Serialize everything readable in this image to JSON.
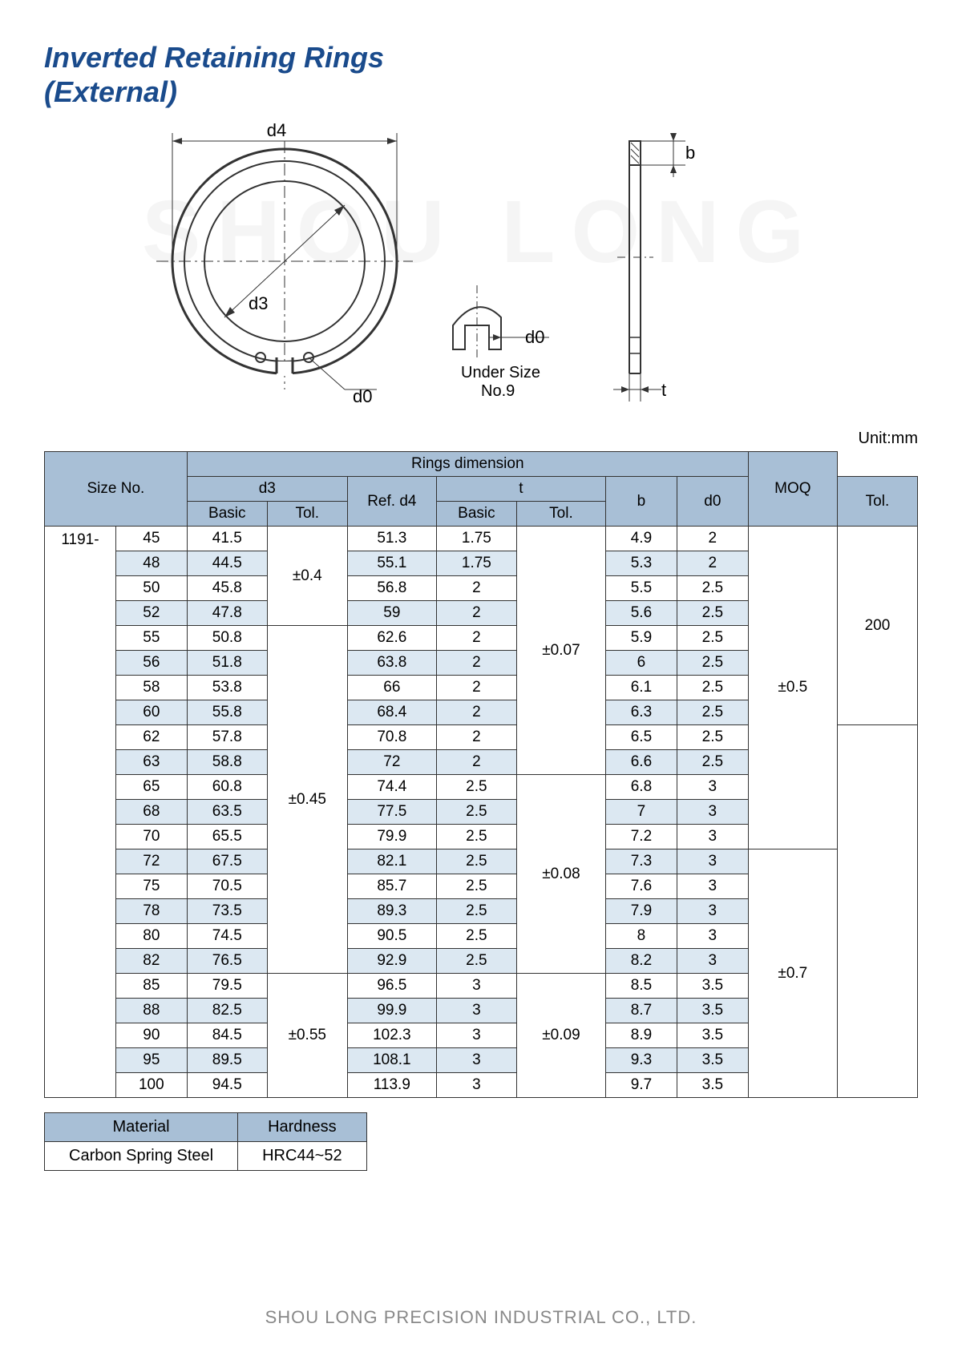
{
  "title_line1": "Inverted Retaining Rings",
  "title_line2": "(External)",
  "watermark": "SHOU LONG",
  "unit_label": "Unit:mm",
  "diagram": {
    "d4_label": "d4",
    "d3_label": "d3",
    "d0_label": "d0",
    "b_label": "b",
    "t_label": "t",
    "under_size_label": "Under Size",
    "under_size_no": "No.9"
  },
  "headers": {
    "size_no": "Size No.",
    "rings_dim": "Rings dimension",
    "moq": "MOQ",
    "d3": "d3",
    "ref_d4": "Ref. d4",
    "t": "t",
    "b": "b",
    "d0": "d0",
    "tol": "Tol.",
    "basic": "Basic"
  },
  "series": "1191-",
  "rows": [
    {
      "size": "45",
      "d3": "41.5",
      "d4": "51.3",
      "t": "1.75",
      "b": "4.9",
      "d0": "2",
      "shade": false
    },
    {
      "size": "48",
      "d3": "44.5",
      "d4": "55.1",
      "t": "1.75",
      "b": "5.3",
      "d0": "2",
      "shade": true
    },
    {
      "size": "50",
      "d3": "45.8",
      "d4": "56.8",
      "t": "2",
      "b": "5.5",
      "d0": "2.5",
      "shade": false
    },
    {
      "size": "52",
      "d3": "47.8",
      "d4": "59",
      "t": "2",
      "b": "5.6",
      "d0": "2.5",
      "shade": true
    },
    {
      "size": "55",
      "d3": "50.8",
      "d4": "62.6",
      "t": "2",
      "b": "5.9",
      "d0": "2.5",
      "shade": false
    },
    {
      "size": "56",
      "d3": "51.8",
      "d4": "63.8",
      "t": "2",
      "b": "6",
      "d0": "2.5",
      "shade": true
    },
    {
      "size": "58",
      "d3": "53.8",
      "d4": "66",
      "t": "2",
      "b": "6.1",
      "d0": "2.5",
      "shade": false
    },
    {
      "size": "60",
      "d3": "55.8",
      "d4": "68.4",
      "t": "2",
      "b": "6.3",
      "d0": "2.5",
      "shade": true
    },
    {
      "size": "62",
      "d3": "57.8",
      "d4": "70.8",
      "t": "2",
      "b": "6.5",
      "d0": "2.5",
      "shade": false
    },
    {
      "size": "63",
      "d3": "58.8",
      "d4": "72",
      "t": "2",
      "b": "6.6",
      "d0": "2.5",
      "shade": true
    },
    {
      "size": "65",
      "d3": "60.8",
      "d4": "74.4",
      "t": "2.5",
      "b": "6.8",
      "d0": "3",
      "shade": false
    },
    {
      "size": "68",
      "d3": "63.5",
      "d4": "77.5",
      "t": "2.5",
      "b": "7",
      "d0": "3",
      "shade": true
    },
    {
      "size": "70",
      "d3": "65.5",
      "d4": "79.9",
      "t": "2.5",
      "b": "7.2",
      "d0": "3",
      "shade": false
    },
    {
      "size": "72",
      "d3": "67.5",
      "d4": "82.1",
      "t": "2.5",
      "b": "7.3",
      "d0": "3",
      "shade": true
    },
    {
      "size": "75",
      "d3": "70.5",
      "d4": "85.7",
      "t": "2.5",
      "b": "7.6",
      "d0": "3",
      "shade": false
    },
    {
      "size": "78",
      "d3": "73.5",
      "d4": "89.3",
      "t": "2.5",
      "b": "7.9",
      "d0": "3",
      "shade": true
    },
    {
      "size": "80",
      "d3": "74.5",
      "d4": "90.5",
      "t": "2.5",
      "b": "8",
      "d0": "3",
      "shade": false
    },
    {
      "size": "82",
      "d3": "76.5",
      "d4": "92.9",
      "t": "2.5",
      "b": "8.2",
      "d0": "3",
      "shade": true
    },
    {
      "size": "85",
      "d3": "79.5",
      "d4": "96.5",
      "t": "3",
      "b": "8.5",
      "d0": "3.5",
      "shade": false
    },
    {
      "size": "88",
      "d3": "82.5",
      "d4": "99.9",
      "t": "3",
      "b": "8.7",
      "d0": "3.5",
      "shade": true
    },
    {
      "size": "90",
      "d3": "84.5",
      "d4": "102.3",
      "t": "3",
      "b": "8.9",
      "d0": "3.5",
      "shade": false
    },
    {
      "size": "95",
      "d3": "89.5",
      "d4": "108.1",
      "t": "3",
      "b": "9.3",
      "d0": "3.5",
      "shade": true
    },
    {
      "size": "100",
      "d3": "94.5",
      "d4": "113.9",
      "t": "3",
      "b": "9.7",
      "d0": "3.5",
      "shade": false
    }
  ],
  "d3_tol_groups": [
    {
      "span": 4,
      "val": "±0.4"
    },
    {
      "span": 14,
      "val": "±0.45"
    },
    {
      "span": 5,
      "val": "±0.55"
    }
  ],
  "t_tol_groups": [
    {
      "span": 10,
      "val": "±0.07"
    },
    {
      "span": 8,
      "val": "±0.08"
    },
    {
      "span": 5,
      "val": "±0.09"
    }
  ],
  "d0_tol_groups": [
    {
      "span": 13,
      "val": "±0.5"
    },
    {
      "span": 10,
      "val": "±0.7"
    }
  ],
  "moq_groups": [
    {
      "span": 8,
      "val": "200"
    },
    {
      "span": 15,
      "val": ""
    }
  ],
  "material": {
    "h1": "Material",
    "h2": "Hardness",
    "v1": "Carbon Spring Steel",
    "v2": "HRC44~52"
  },
  "footer": "SHOU LONG PRECISION INDUSTRIAL CO., LTD.",
  "colors": {
    "title": "#1a4b8c",
    "header_bg": "#a8bfd6",
    "shade_bg": "#dce8f2",
    "border": "#333333",
    "footer": "#888888"
  }
}
